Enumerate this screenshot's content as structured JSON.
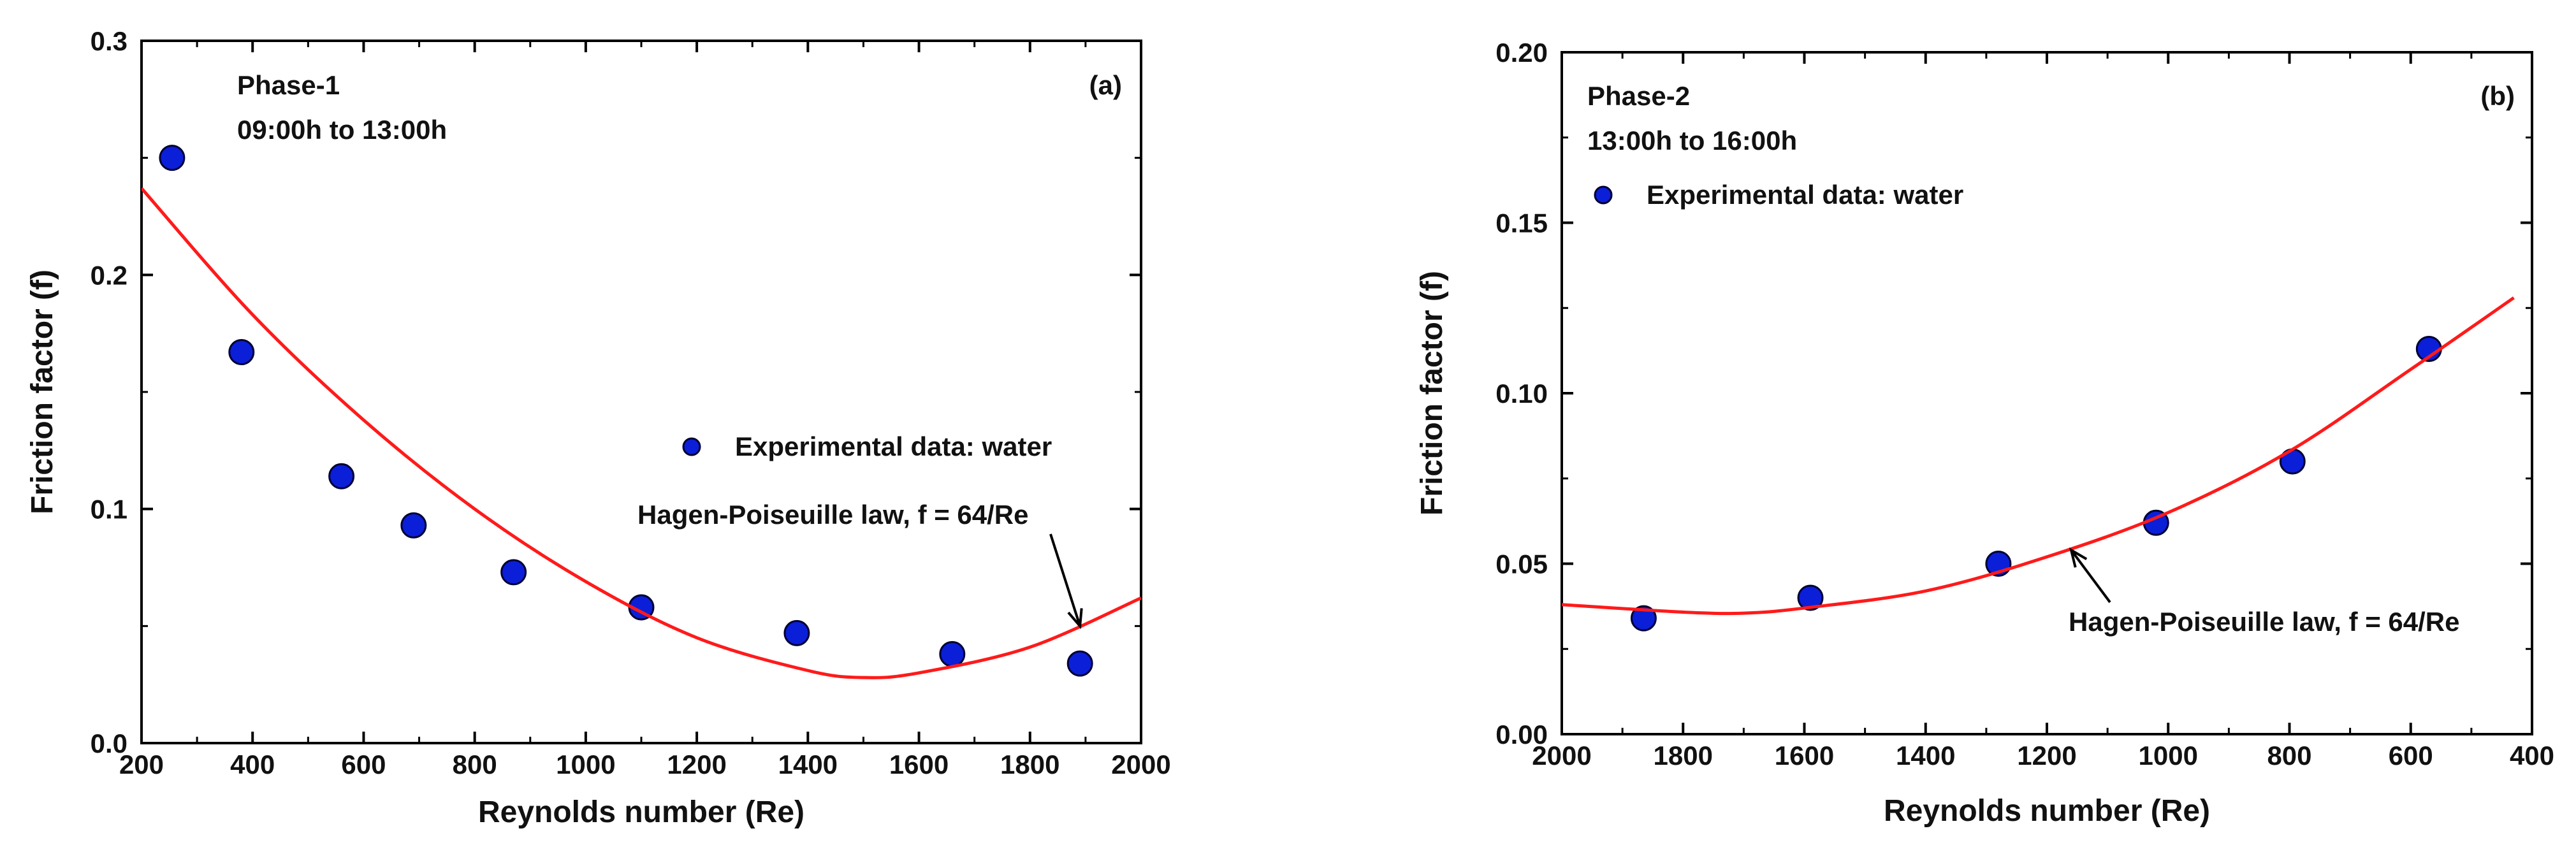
{
  "chart_data": [
    {
      "type": "scatter",
      "panel_label": "(a)",
      "title_lines": [
        "Phase-1",
        "09:00h to 13:00h"
      ],
      "xlabel": "Reynolds number (Re)",
      "ylabel": "Friction factor (f)",
      "xlim": [
        200,
        2000
      ],
      "ylim": [
        0.0,
        0.3
      ],
      "x_reversed": false,
      "xticks": [
        200,
        400,
        600,
        800,
        1000,
        1200,
        1400,
        1600,
        1800,
        2000
      ],
      "xtick_labels": [
        "200",
        "400",
        "600",
        "800",
        "1000",
        "1200",
        "1400",
        "1600",
        "1800",
        "2000"
      ],
      "yticks": [
        0.0,
        0.1,
        0.2,
        0.3
      ],
      "ytick_labels": [
        "0.0",
        "0.1",
        "0.2",
        "0.3"
      ],
      "series": [
        {
          "name": "Experimental data: water",
          "kind": "scatter",
          "color": "#0b1fd9",
          "x": [
            255,
            380,
            560,
            690,
            870,
            1100,
            1380,
            1660,
            1890
          ],
          "y": [
            0.25,
            0.167,
            0.114,
            0.093,
            0.073,
            0.058,
            0.047,
            0.038,
            0.034
          ]
        },
        {
          "name": "Hagen-Poiseuille law, f = 64/Re",
          "kind": "line",
          "color": "#ff1a1a",
          "x": [
            200,
            400,
            600,
            800,
            1000,
            1200,
            1400,
            1500,
            1600,
            1800,
            2000
          ],
          "y": [
            0.237,
            0.183,
            0.138,
            0.1,
            0.069,
            0.045,
            0.031,
            0.028,
            0.03,
            0.041,
            0.062
          ]
        }
      ],
      "legend": {
        "label": "Experimental data: water",
        "position": "center-right"
      },
      "annotation": {
        "text": "Hagen-Poiseuille law, f = 64/Re",
        "arrow_to": [
          1890,
          0.05
        ]
      }
    },
    {
      "type": "scatter",
      "panel_label": "(b)",
      "title_lines": [
        "Phase-2",
        "13:00h to 16:00h"
      ],
      "xlabel": "Reynolds number (Re)",
      "ylabel": "Friction factor (f)",
      "xlim": [
        2000,
        400
      ],
      "ylim": [
        0.0,
        0.2
      ],
      "x_reversed": true,
      "xticks": [
        2000,
        1800,
        1600,
        1400,
        1200,
        1000,
        800,
        600,
        400
      ],
      "xtick_labels": [
        "2000",
        "1800",
        "1600",
        "1400",
        "1200",
        "1000",
        "800",
        "600",
        "400"
      ],
      "yticks": [
        0.0,
        0.05,
        0.1,
        0.15,
        0.2
      ],
      "ytick_labels": [
        "0.00",
        "0.05",
        "0.10",
        "0.15",
        "0.20"
      ],
      "series": [
        {
          "name": "Experimental data: water",
          "kind": "scatter",
          "color": "#0b1fd9",
          "x": [
            1865,
            1590,
            1280,
            1020,
            795,
            570
          ],
          "y": [
            0.034,
            0.04,
            0.05,
            0.062,
            0.08,
            0.113
          ]
        },
        {
          "name": "Hagen-Poiseuille law, f = 64/Re",
          "kind": "line",
          "color": "#ff1a1a",
          "x": [
            2000,
            1800,
            1700,
            1600,
            1400,
            1200,
            1000,
            800,
            600,
            430
          ],
          "y": [
            0.038,
            0.0358,
            0.0355,
            0.037,
            0.042,
            0.052,
            0.065,
            0.083,
            0.107,
            0.128
          ]
        }
      ],
      "legend": {
        "label": "Experimental data: water",
        "position": "top-left"
      },
      "annotation": {
        "text": "Hagen-Poiseuille law, f = 64/Re",
        "arrow_to": [
          1160,
          0.054
        ]
      }
    }
  ]
}
